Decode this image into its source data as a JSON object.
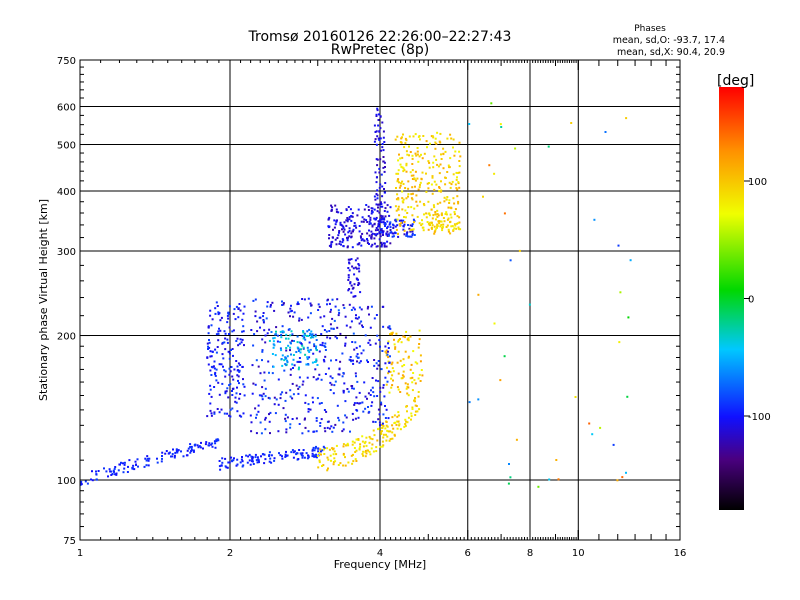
{
  "chart_data": {
    "type": "scatter",
    "title": "Tromsø 20160126 22:26:00–22:27:43",
    "subtitle": "RwPretec (8p)",
    "xlabel": "Frequency [MHz]",
    "ylabel": "Stationary phase Virtual Height [km]",
    "x_scale": "log",
    "y_scale": "log",
    "xlim": [
      1,
      16
    ],
    "ylim": [
      75,
      750
    ],
    "x_ticks": [
      1,
      2,
      4,
      6,
      8,
      10,
      16
    ],
    "x_tick_labels": [
      "1",
      "2",
      "4",
      "6",
      "8",
      "10",
      "16"
    ],
    "y_ticks": [
      75,
      100,
      200,
      300,
      400,
      500,
      600,
      750
    ],
    "y_tick_labels": [
      "75",
      "100",
      "200",
      "300",
      "400",
      "500",
      "600",
      "750"
    ],
    "grid": true,
    "phase_info": {
      "title": "Phases",
      "line_o": "mean, sd,O: -93.7, 17.4",
      "line_x": "mean, sd,X: 90.4, 20.9"
    },
    "colorbar": {
      "label": "[deg]",
      "range": [
        -180,
        180
      ],
      "tick_values": [
        100,
        0,
        -100
      ],
      "tick_labels": [
        "100",
        "0",
        "-100"
      ]
    },
    "clusters": [
      {
        "f0": 1.0,
        "f1": 1.9,
        "h0": 100,
        "h1": 120,
        "phase": -95,
        "spread": 10,
        "n": 130,
        "shape": "trace_low"
      },
      {
        "f0": 1.9,
        "f1": 3.1,
        "h0": 108,
        "h1": 115,
        "phase": -95,
        "spread": 10,
        "n": 120,
        "shape": "trace_low"
      },
      {
        "f0": 1.8,
        "f1": 2.15,
        "h0": 135,
        "h1": 235,
        "phase": -98,
        "spread": 15,
        "n": 180,
        "shape": "box"
      },
      {
        "f0": 2.2,
        "f1": 3.6,
        "h0": 125,
        "h1": 240,
        "phase": -100,
        "spread": 25,
        "n": 330,
        "shape": "box"
      },
      {
        "f0": 2.4,
        "f1": 3.0,
        "h0": 170,
        "h1": 205,
        "phase": -50,
        "spread": 25,
        "n": 100,
        "shape": "box"
      },
      {
        "f0": 3.0,
        "f1": 4.8,
        "h0": 110,
        "h1": 145,
        "phase": 92,
        "spread": 18,
        "n": 170,
        "shape": "curve_o"
      },
      {
        "f0": 4.1,
        "f1": 4.9,
        "h0": 150,
        "h1": 205,
        "phase": 95,
        "spread": 25,
        "n": 90,
        "shape": "box"
      },
      {
        "f0": 3.5,
        "f1": 4.2,
        "h0": 130,
        "h1": 230,
        "phase": -100,
        "spread": 20,
        "n": 120,
        "shape": "box"
      },
      {
        "f0": 3.15,
        "f1": 4.2,
        "h0": 305,
        "h1": 375,
        "phase": -110,
        "spread": 15,
        "n": 200,
        "shape": "box"
      },
      {
        "f0": 3.9,
        "f1": 4.1,
        "h0": 310,
        "h1": 600,
        "phase": -110,
        "spread": 15,
        "n": 90,
        "shape": "box"
      },
      {
        "f0": 4.0,
        "f1": 4.7,
        "h0": 320,
        "h1": 350,
        "phase": -100,
        "spread": 20,
        "n": 70,
        "shape": "box"
      },
      {
        "f0": 4.3,
        "f1": 5.8,
        "h0": 325,
        "h1": 530,
        "phase": 95,
        "spread": 20,
        "n": 280,
        "shape": "box"
      },
      {
        "f0": 4.8,
        "f1": 5.8,
        "h0": 330,
        "h1": 360,
        "phase": 90,
        "spread": 15,
        "n": 60,
        "shape": "box"
      },
      {
        "f0": 3.45,
        "f1": 3.65,
        "h0": 240,
        "h1": 290,
        "phase": -110,
        "spread": 10,
        "n": 40,
        "shape": "box"
      },
      {
        "f0": 6.0,
        "f1": 13.0,
        "h0": 95,
        "h1": 620,
        "phase": 30,
        "spread": 120,
        "n": 45,
        "shape": "box"
      }
    ]
  }
}
